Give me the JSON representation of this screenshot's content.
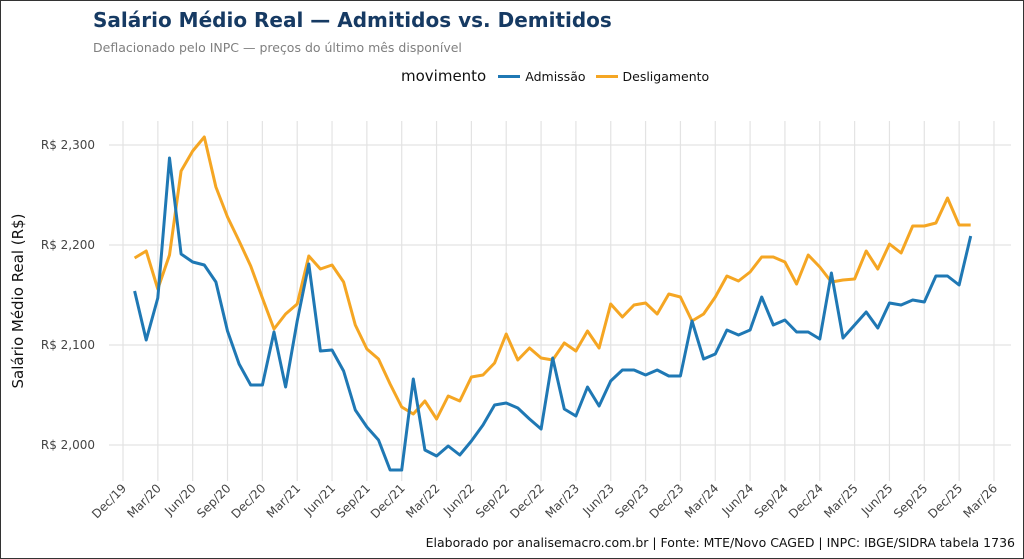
{
  "title": "Salário Médio Real — Admitidos vs. Demitidos",
  "subtitle": "Deflacionado pelo INPC — preços do último mês disponível",
  "caption": "Elaborado por analisemacro.com.br | Fonte: MTE/Novo CAGED | INPC: IBGE/SIDRA tabela 1736",
  "chart_data": {
    "type": "line",
    "title": "Salário Médio Real — Admitidos vs. Demitidos",
    "ylabel": "Salário Médio Real (R$)",
    "xlabel": "",
    "legend_title": "movimento",
    "legend_position": "top",
    "grid": true,
    "ylim": [
      1960,
      2325
    ],
    "yticks": [
      2000,
      2100,
      2200,
      2300
    ],
    "ytick_labels": [
      "R$ 2,000",
      "R$ 2,100",
      "R$ 2,200",
      "R$ 2,300"
    ],
    "xtick_labels": [
      "Dec/19",
      "Mar/20",
      "Jun/20",
      "Sep/20",
      "Dec/20",
      "Mar/21",
      "Jun/21",
      "Sep/21",
      "Dec/21",
      "Mar/22",
      "Jun/22",
      "Sep/22",
      "Dec/22",
      "Mar/23",
      "Jun/23",
      "Sep/23",
      "Dec/23",
      "Mar/24",
      "Jun/24",
      "Sep/24",
      "Dec/24",
      "Mar/25",
      "Jun/25",
      "Sep/25",
      "Dec/25",
      "Mar/26"
    ],
    "x_start": "Jan/20",
    "x_end": "Jan/26",
    "x_frequency": "monthly",
    "series": [
      {
        "name": "Admissão",
        "color": "#1f78b4",
        "values": [
          2154,
          2105,
          2147,
          2287,
          2191,
          2183,
          2180,
          2163,
          2114,
          2081,
          2060,
          2060,
          2113,
          2058,
          2124,
          2181,
          2094,
          2095,
          2074,
          2035,
          2018,
          2005,
          1975,
          1975,
          2066,
          1995,
          1989,
          1999,
          1990,
          2004,
          2020,
          2040,
          2042,
          2037,
          2026,
          2016,
          2087,
          2036,
          2029,
          2058,
          2039,
          2064,
          2075,
          2075,
          2070,
          2075,
          2069,
          2069,
          2124,
          2086,
          2091,
          2115,
          2110,
          2115,
          2148,
          2120,
          2125,
          2113,
          2113,
          2106,
          2172,
          2107,
          2120,
          2133,
          2117,
          2142,
          2140,
          2145,
          2143,
          2169,
          2169,
          2160,
          2209
        ]
      },
      {
        "name": "Desligamento",
        "color": "#f5a623",
        "values": [
          2187,
          2194,
          2156,
          2190,
          2274,
          2294,
          2308,
          2258,
          2228,
          2204,
          2179,
          2147,
          2116,
          2131,
          2141,
          2189,
          2176,
          2180,
          2163,
          2120,
          2096,
          2086,
          2061,
          2038,
          2031,
          2044,
          2026,
          2049,
          2044,
          2068,
          2070,
          2082,
          2111,
          2085,
          2097,
          2087,
          2085,
          2102,
          2094,
          2114,
          2097,
          2141,
          2128,
          2140,
          2142,
          2131,
          2151,
          2148,
          2124,
          2131,
          2148,
          2169,
          2164,
          2173,
          2188,
          2188,
          2183,
          2161,
          2190,
          2178,
          2163,
          2165,
          2166,
          2194,
          2176,
          2201,
          2192,
          2219,
          2219,
          2222,
          2247,
          2220,
          2220
        ]
      }
    ]
  }
}
